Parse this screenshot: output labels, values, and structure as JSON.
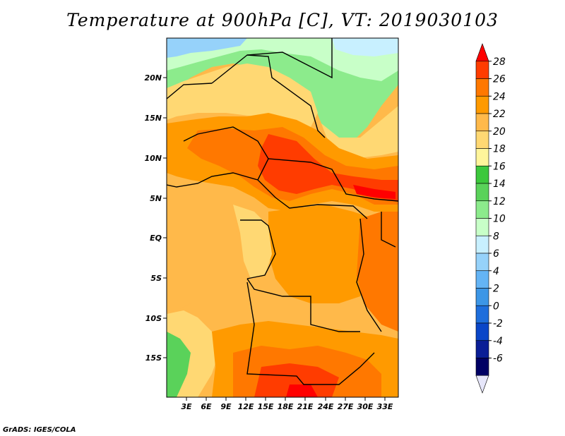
{
  "title": "Temperature at 900hPa [C], VT: 2019030103",
  "credit": "GrADS: IGES/COLA",
  "map": {
    "lat_ticks": [
      "20N",
      "15N",
      "10N",
      "5N",
      "EQ",
      "5S",
      "10S",
      "15S"
    ],
    "lon_ticks": [
      "3E",
      "6E",
      "9E",
      "12E",
      "15E",
      "18E",
      "21E",
      "24E",
      "27E",
      "30E",
      "33E"
    ]
  },
  "colorbar": {
    "levels": [
      "28",
      "26",
      "24",
      "22",
      "20",
      "18",
      "16",
      "14",
      "12",
      "10",
      "8",
      "6",
      "4",
      "2",
      "0",
      "-2",
      "-4",
      "-6"
    ],
    "colors": [
      "#ff0000",
      "#ff3c00",
      "#ff7800",
      "#ff9a00",
      "#ffb94a",
      "#ffd873",
      "#fff59b",
      "#3cc83c",
      "#5ad25a",
      "#8ceb8c",
      "#c8ffc8",
      "#c8f0ff",
      "#96d2fa",
      "#64b4f5",
      "#3c96e6",
      "#1e6edc",
      "#0a46c8",
      "#0a1e96",
      "#000064",
      "#e6e6fa"
    ]
  }
}
